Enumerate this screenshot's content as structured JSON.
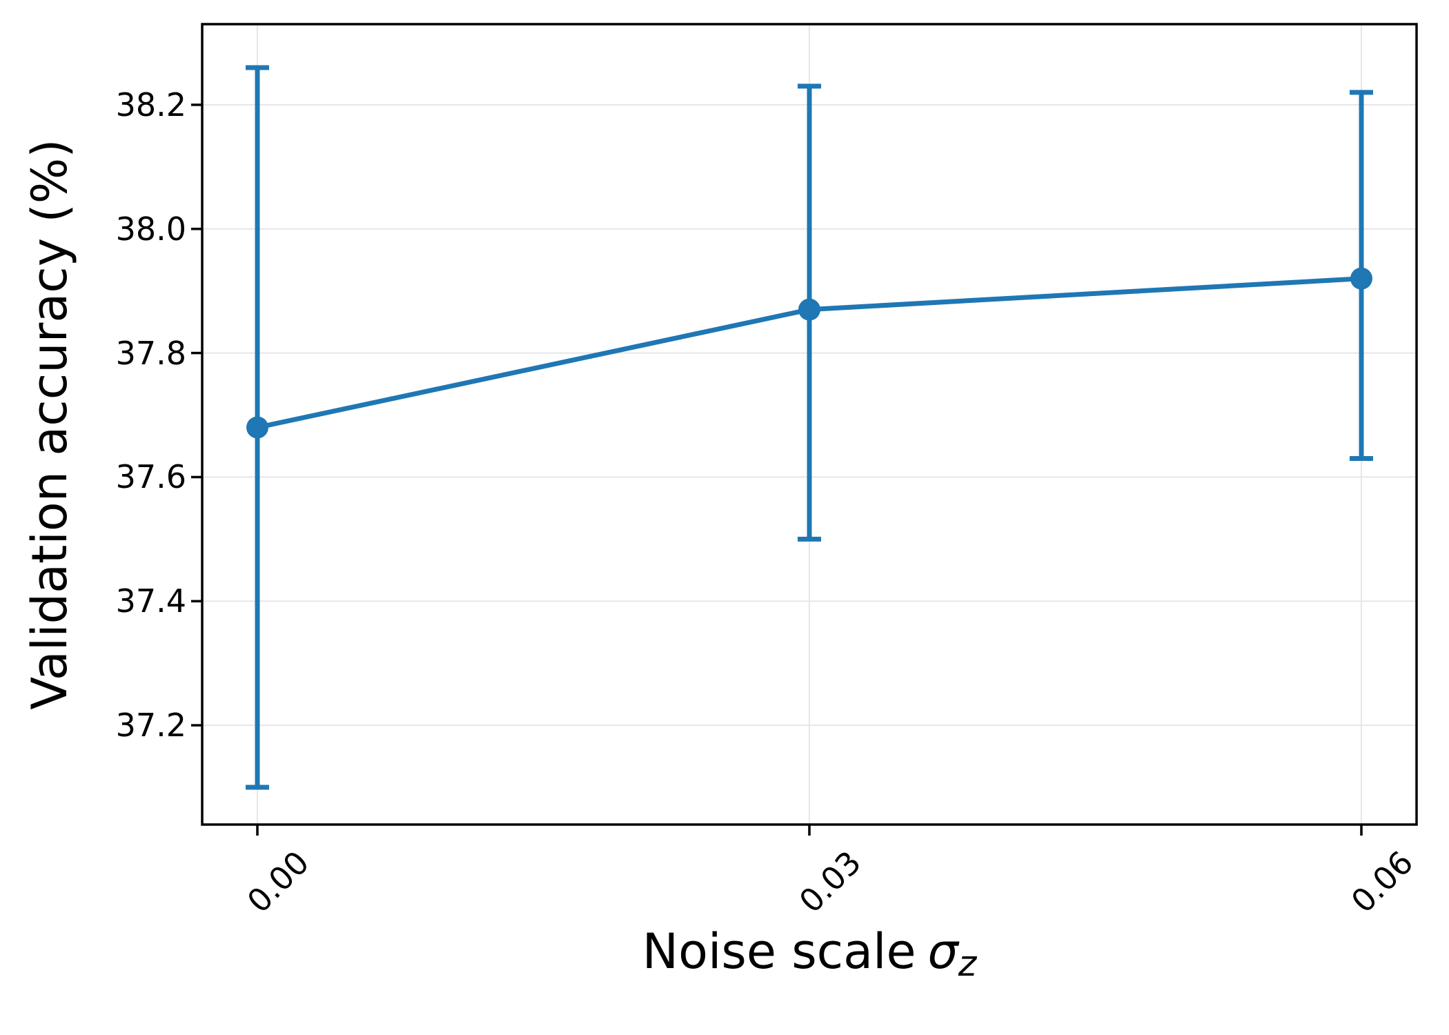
{
  "chart_data": {
    "type": "line",
    "title": "",
    "xlabel": {
      "text": "Noise scale",
      "symbol": "σ",
      "subscript": "z"
    },
    "ylabel": "Validation accuracy (%)",
    "x": [
      0.0,
      0.03,
      0.06
    ],
    "series": [
      {
        "color": "#1f77b4",
        "values": [
          37.68,
          37.87,
          37.92
        ],
        "error_low": [
          37.1,
          37.5,
          37.63
        ],
        "error_high": [
          38.26,
          38.23,
          38.22
        ]
      }
    ],
    "xticks": {
      "values": [
        0.0,
        0.03,
        0.06
      ],
      "labels": [
        "0.00",
        "0.03",
        "0.06"
      ],
      "rotation": 45
    },
    "yticks": {
      "values": [
        37.2,
        37.4,
        37.6,
        37.8,
        38.0,
        38.2
      ],
      "labels": [
        "37.2",
        "37.4",
        "37.6",
        "37.8",
        "38.0",
        "38.2"
      ]
    },
    "xlim": [
      -0.003,
      0.063
    ],
    "ylim": [
      37.04,
      38.33
    ],
    "grid": true,
    "legend_position": "none",
    "colors": {
      "line": "#1f77b4",
      "grid": "#e6e6e6",
      "spine": "#000000",
      "text": "#000000",
      "background": "#ffffff"
    }
  }
}
